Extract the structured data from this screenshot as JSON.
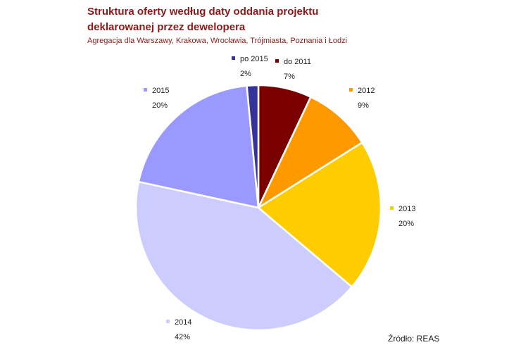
{
  "title": "Struktura oferty według daty oddania projektu deklarowanej przez dewelopera",
  "subtitle": "Agregacja dla Warszawy, Krakowa, Wrocławia, Trójmiasta, Poznania i Łodzi",
  "source": "Źródło: REAS",
  "chart_data": {
    "type": "pie",
    "slices": [
      {
        "label": "do 2011",
        "percent_label": "7%",
        "value": 7,
        "color": "#7a0000"
      },
      {
        "label": "2012",
        "percent_label": "9%",
        "value": 9,
        "color": "#ff9900"
      },
      {
        "label": "2013",
        "percent_label": "20%",
        "value": 20,
        "color": "#ffcc00"
      },
      {
        "label": "2014",
        "percent_label": "42%",
        "value": 42,
        "color": "#ccccff"
      },
      {
        "label": "2015",
        "percent_label": "20%",
        "value": 20,
        "color": "#9999ff"
      },
      {
        "label": "po 2015",
        "percent_label": "2%",
        "value": 1.5,
        "color": "#333399"
      }
    ]
  }
}
